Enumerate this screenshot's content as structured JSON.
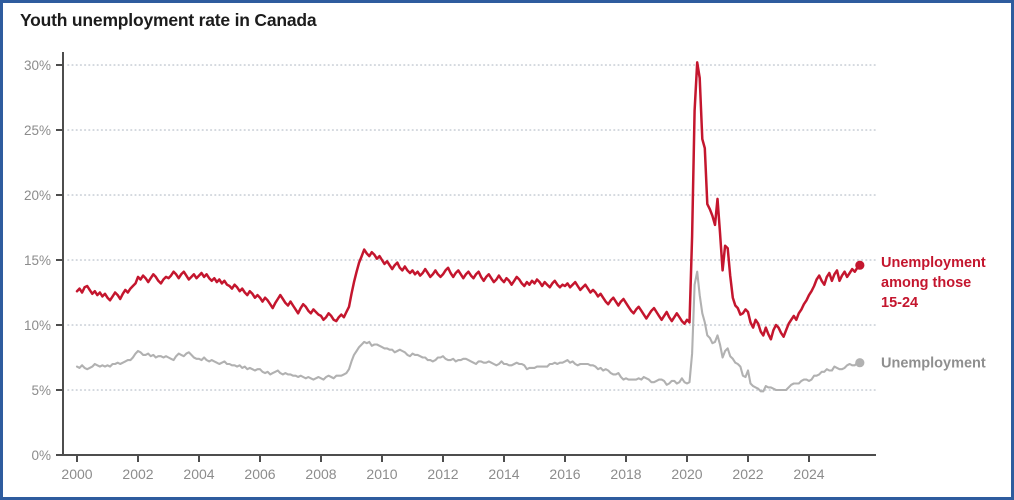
{
  "title": "Youth unemployment rate in Canada",
  "colors": {
    "youth_line": "#c4162e",
    "overall_line": "#b1b1b1",
    "overall_label": "#8f8f8f",
    "axis": "#4d4d4d",
    "tick_label": "#8c8c8c",
    "gridline": "#c6ccd4",
    "frame_border": "#2f5c9e",
    "title_text": "#1c1c1c"
  },
  "chart_data": {
    "type": "line",
    "title": "Youth unemployment rate in Canada",
    "xlabel": "",
    "ylabel": "",
    "x_start_year": 2000,
    "x_step_months": 1,
    "x_end": "2025 Sep",
    "xlim": [
      2000,
      2026.2
    ],
    "ylim": [
      0,
      30
    ],
    "grid": "dotted-horizontal",
    "legend_position": "right-of-line-ends",
    "x_ticks": [
      2000,
      2002,
      2004,
      2006,
      2008,
      2010,
      2012,
      2014,
      2016,
      2018,
      2020,
      2022,
      2024
    ],
    "y_tick_values": [
      0,
      5,
      10,
      15,
      20,
      25,
      30
    ],
    "y_tick_suffix": "%",
    "series": [
      {
        "name": "Unemployment among those 15-24",
        "label_lines": [
          "Unemployment",
          "among those",
          "15-24"
        ],
        "color": "#c4162e",
        "label_color": "#c4162e",
        "values": [
          12.6,
          12.8,
          12.5,
          12.9,
          13.0,
          12.7,
          12.4,
          12.6,
          12.3,
          12.5,
          12.2,
          12.4,
          12.1,
          11.9,
          12.2,
          12.5,
          12.3,
          12.0,
          12.4,
          12.7,
          12.5,
          12.8,
          13.0,
          13.2,
          13.7,
          13.5,
          13.8,
          13.6,
          13.3,
          13.6,
          13.9,
          13.7,
          13.4,
          13.2,
          13.5,
          13.7,
          13.6,
          13.8,
          14.1,
          13.9,
          13.6,
          13.9,
          14.1,
          13.8,
          13.5,
          13.7,
          13.9,
          13.6,
          13.8,
          14.0,
          13.7,
          13.9,
          13.6,
          13.4,
          13.6,
          13.3,
          13.5,
          13.2,
          13.4,
          13.1,
          13.0,
          12.8,
          13.1,
          12.9,
          12.6,
          12.8,
          12.5,
          12.3,
          12.6,
          12.4,
          12.1,
          12.3,
          12.1,
          11.8,
          12.1,
          11.9,
          11.6,
          11.3,
          11.7,
          12.0,
          12.3,
          12.0,
          11.7,
          11.5,
          11.8,
          11.5,
          11.2,
          10.9,
          11.3,
          11.6,
          11.4,
          11.1,
          10.9,
          11.2,
          11.0,
          10.8,
          10.7,
          10.4,
          10.6,
          10.9,
          10.7,
          10.4,
          10.3,
          10.6,
          10.8,
          10.6,
          11.0,
          11.4,
          12.4,
          13.3,
          14.1,
          14.8,
          15.3,
          15.8,
          15.5,
          15.3,
          15.6,
          15.4,
          15.1,
          15.3,
          15.0,
          14.7,
          14.9,
          14.6,
          14.3,
          14.6,
          14.8,
          14.4,
          14.2,
          14.5,
          14.2,
          14.0,
          14.2,
          13.9,
          14.1,
          13.8,
          14.0,
          14.3,
          14.0,
          13.7,
          13.9,
          14.2,
          13.9,
          13.7,
          13.9,
          14.2,
          14.4,
          14.0,
          13.7,
          14.0,
          14.2,
          13.9,
          13.6,
          13.9,
          14.1,
          13.8,
          13.6,
          13.9,
          14.1,
          13.7,
          13.4,
          13.7,
          13.9,
          13.6,
          13.3,
          13.5,
          13.8,
          13.5,
          13.3,
          13.6,
          13.4,
          13.1,
          13.4,
          13.7,
          13.5,
          13.2,
          13.0,
          13.3,
          13.1,
          13.4,
          13.2,
          13.5,
          13.3,
          13.0,
          13.3,
          13.1,
          12.9,
          13.2,
          13.4,
          13.1,
          12.9,
          13.1,
          13.0,
          13.2,
          12.9,
          13.1,
          13.3,
          13.0,
          12.7,
          12.9,
          13.1,
          12.8,
          12.5,
          12.7,
          12.5,
          12.2,
          12.4,
          12.1,
          11.8,
          11.6,
          11.9,
          12.1,
          11.8,
          11.5,
          11.8,
          12.0,
          11.7,
          11.4,
          11.1,
          10.9,
          11.2,
          11.4,
          11.1,
          10.8,
          10.5,
          10.8,
          11.1,
          11.3,
          11.0,
          10.7,
          10.4,
          10.7,
          11.0,
          10.6,
          10.3,
          10.6,
          10.9,
          10.6,
          10.3,
          10.1,
          10.4,
          10.2,
          16.8,
          26.5,
          30.2,
          29.0,
          24.3,
          23.6,
          19.3,
          18.9,
          18.4,
          17.7,
          19.7,
          17.1,
          14.2,
          16.1,
          15.9,
          13.8,
          12.1,
          11.5,
          11.3,
          10.8,
          10.9,
          11.2,
          11.0,
          10.2,
          9.8,
          10.4,
          10.1,
          9.5,
          9.2,
          9.8,
          9.3,
          8.9,
          9.6,
          10.0,
          9.8,
          9.4,
          9.1,
          9.6,
          10.1,
          10.4,
          10.7,
          10.4,
          10.9,
          11.2,
          11.6,
          11.9,
          12.3,
          12.6,
          13.0,
          13.5,
          13.8,
          13.4,
          13.1,
          13.7,
          14.0,
          13.4,
          13.9,
          14.2,
          13.4,
          13.8,
          14.1,
          13.7,
          14.0,
          14.3,
          14.1,
          14.4,
          14.6
        ]
      },
      {
        "name": "Unemployment",
        "label_lines": [
          "Unemployment"
        ],
        "color": "#b1b1b1",
        "label_color": "#8f8f8f",
        "values": [
          6.8,
          6.7,
          6.9,
          6.7,
          6.6,
          6.7,
          6.8,
          7.0,
          6.9,
          6.8,
          6.9,
          6.8,
          6.9,
          6.8,
          7.0,
          7.0,
          7.1,
          7.0,
          7.1,
          7.2,
          7.3,
          7.3,
          7.5,
          7.8,
          8.0,
          7.9,
          7.7,
          7.7,
          7.8,
          7.6,
          7.7,
          7.5,
          7.6,
          7.6,
          7.5,
          7.6,
          7.5,
          7.4,
          7.3,
          7.6,
          7.8,
          7.7,
          7.6,
          7.8,
          7.9,
          7.7,
          7.5,
          7.4,
          7.4,
          7.3,
          7.5,
          7.3,
          7.2,
          7.3,
          7.2,
          7.1,
          7.0,
          7.1,
          7.2,
          7.0,
          7.0,
          6.9,
          6.9,
          6.8,
          6.9,
          6.7,
          6.8,
          6.6,
          6.7,
          6.6,
          6.5,
          6.6,
          6.6,
          6.4,
          6.3,
          6.4,
          6.2,
          6.3,
          6.4,
          6.5,
          6.3,
          6.2,
          6.3,
          6.2,
          6.2,
          6.1,
          6.1,
          6.0,
          6.1,
          6.0,
          5.9,
          6.0,
          5.9,
          5.8,
          5.9,
          6.0,
          5.9,
          5.8,
          6.0,
          6.1,
          6.0,
          5.9,
          6.1,
          6.1,
          6.1,
          6.2,
          6.3,
          6.6,
          7.2,
          7.7,
          8.0,
          8.3,
          8.5,
          8.7,
          8.6,
          8.7,
          8.4,
          8.5,
          8.5,
          8.4,
          8.3,
          8.2,
          8.2,
          8.1,
          8.1,
          7.9,
          8.0,
          8.1,
          8.0,
          7.9,
          7.7,
          7.6,
          7.8,
          7.7,
          7.7,
          7.6,
          7.5,
          7.5,
          7.3,
          7.3,
          7.2,
          7.3,
          7.5,
          7.5,
          7.6,
          7.4,
          7.3,
          7.3,
          7.4,
          7.2,
          7.3,
          7.3,
          7.4,
          7.4,
          7.3,
          7.2,
          7.1,
          7.0,
          7.2,
          7.2,
          7.1,
          7.1,
          7.2,
          7.1,
          7.0,
          6.9,
          7.0,
          7.2,
          7.0,
          7.0,
          6.9,
          6.9,
          7.0,
          7.1,
          7.0,
          7.0,
          6.9,
          6.6,
          6.7,
          6.7,
          6.7,
          6.8,
          6.8,
          6.8,
          6.8,
          6.8,
          7.0,
          7.0,
          7.1,
          7.0,
          7.1,
          7.1,
          7.2,
          7.3,
          7.1,
          7.2,
          7.0,
          6.9,
          7.0,
          7.0,
          7.0,
          7.0,
          6.9,
          6.9,
          6.8,
          6.6,
          6.7,
          6.5,
          6.6,
          6.5,
          6.3,
          6.2,
          6.2,
          6.3,
          6.0,
          5.8,
          5.9,
          5.8,
          5.8,
          5.8,
          5.8,
          5.9,
          5.8,
          6.0,
          5.9,
          5.8,
          5.6,
          5.6,
          5.7,
          5.8,
          5.8,
          5.7,
          5.4,
          5.5,
          5.7,
          5.7,
          5.5,
          5.6,
          5.9,
          5.6,
          5.5,
          5.6,
          7.8,
          13.1,
          14.1,
          12.3,
          10.9,
          10.2,
          9.2,
          9.0,
          8.6,
          8.7,
          9.2,
          8.5,
          7.5,
          8.0,
          8.2,
          7.6,
          7.4,
          7.1,
          7.0,
          6.8,
          6.1,
          6.0,
          6.5,
          5.5,
          5.3,
          5.2,
          5.1,
          4.9,
          4.9,
          5.3,
          5.2,
          5.2,
          5.1,
          5.0,
          5.0,
          5.0,
          5.0,
          5.0,
          5.2,
          5.4,
          5.5,
          5.5,
          5.5,
          5.7,
          5.8,
          5.8,
          5.7,
          5.8,
          6.1,
          6.1,
          6.2,
          6.4,
          6.4,
          6.6,
          6.5,
          6.5,
          6.8,
          6.7,
          6.6,
          6.6,
          6.7,
          6.9,
          7.0,
          6.9,
          6.9,
          7.1,
          7.1
        ]
      }
    ]
  }
}
